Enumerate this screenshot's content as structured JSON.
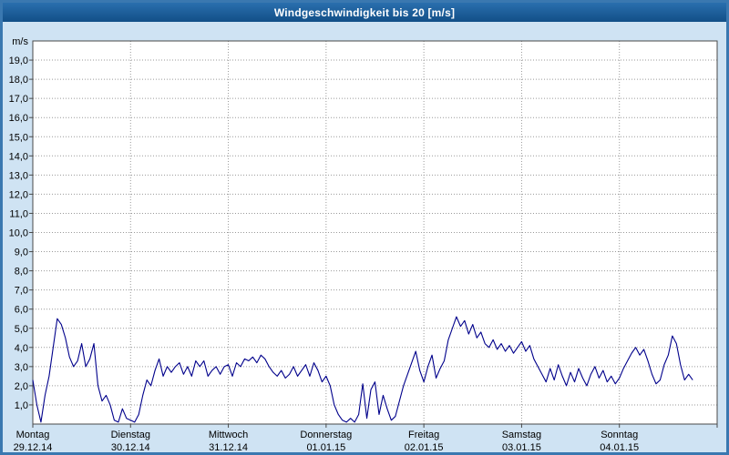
{
  "window": {
    "title": "Windgeschwindigkeit bis 20 [m/s]"
  },
  "chart_data": {
    "type": "line",
    "title": "Windgeschwindigkeit bis 20 [m/s]",
    "ylabel": "m/s",
    "xlabel": "",
    "ylim": [
      0,
      20
    ],
    "y_tick_step": 1,
    "y_tick_labels": [
      "1,0",
      "2,0",
      "3,0",
      "4,0",
      "5,0",
      "6,0",
      "7,0",
      "8,0",
      "9,0",
      "10,0",
      "11,0",
      "12,0",
      "13,0",
      "14,0",
      "15,0",
      "16,0",
      "17,0",
      "18,0",
      "19,0"
    ],
    "grid": true,
    "legend_position": "none",
    "x_axis": {
      "days": [
        {
          "name": "Montag",
          "date": "29.12.14"
        },
        {
          "name": "Dienstag",
          "date": "30.12.14"
        },
        {
          "name": "Mittwoch",
          "date": "31.12.14"
        },
        {
          "name": "Donnerstag",
          "date": "01.01.15"
        },
        {
          "name": "Freitag",
          "date": "02.01.15"
        },
        {
          "name": "Samstag",
          "date": "03.01.15"
        },
        {
          "name": "Sonntag",
          "date": "04.01.15"
        }
      ]
    },
    "points_per_day": 24,
    "values": [
      2.3,
      1.0,
      0.1,
      1.5,
      2.5,
      4.0,
      5.5,
      5.2,
      4.5,
      3.5,
      3.0,
      3.3,
      4.2,
      3.0,
      3.4,
      4.2,
      2.0,
      1.2,
      1.5,
      1.0,
      0.2,
      0.1,
      0.8,
      0.3,
      0.2,
      0.1,
      0.5,
      1.5,
      2.3,
      2.0,
      2.8,
      3.4,
      2.5,
      3.0,
      2.7,
      3.0,
      3.2,
      2.6,
      3.0,
      2.5,
      3.3,
      3.0,
      3.3,
      2.5,
      2.8,
      3.0,
      2.6,
      3.0,
      3.1,
      2.5,
      3.2,
      3.0,
      3.4,
      3.3,
      3.5,
      3.2,
      3.6,
      3.4,
      3.0,
      2.7,
      2.5,
      2.8,
      2.4,
      2.6,
      3.0,
      2.5,
      2.8,
      3.1,
      2.5,
      3.2,
      2.8,
      2.2,
      2.5,
      2.0,
      1.0,
      0.5,
      0.2,
      0.1,
      0.3,
      0.1,
      0.5,
      2.1,
      0.3,
      1.8,
      2.2,
      0.5,
      1.5,
      0.8,
      0.2,
      0.4,
      1.2,
      2.0,
      2.6,
      3.2,
      3.8,
      2.8,
      2.2,
      3.0,
      3.6,
      2.4,
      2.9,
      3.3,
      4.4,
      5.0,
      5.6,
      5.1,
      5.4,
      4.7,
      5.2,
      4.5,
      4.8,
      4.2,
      4.0,
      4.4,
      3.9,
      4.2,
      3.8,
      4.1,
      3.7,
      4.0,
      4.3,
      3.8,
      4.1,
      3.4,
      3.0,
      2.6,
      2.2,
      2.9,
      2.3,
      3.1,
      2.5,
      2.0,
      2.7,
      2.2,
      2.9,
      2.4,
      2.0,
      2.6,
      3.0,
      2.4,
      2.8,
      2.2,
      2.5,
      2.1,
      2.4,
      2.9,
      3.3,
      3.7,
      4.0,
      3.6,
      3.9,
      3.3,
      2.6,
      2.1,
      2.3,
      3.1,
      3.6,
      4.6,
      4.2,
      3.1,
      2.3,
      2.6,
      2.3
    ],
    "colors": {
      "line": "#00008b",
      "grid": "#9a9a9a",
      "plot_bg": "#ffffff",
      "frame": "#4a4a4a",
      "page_bg": "#cfe3f3",
      "titlebar": "#15568e",
      "title_text": "#ffffff",
      "axis_text": "#000000"
    }
  }
}
